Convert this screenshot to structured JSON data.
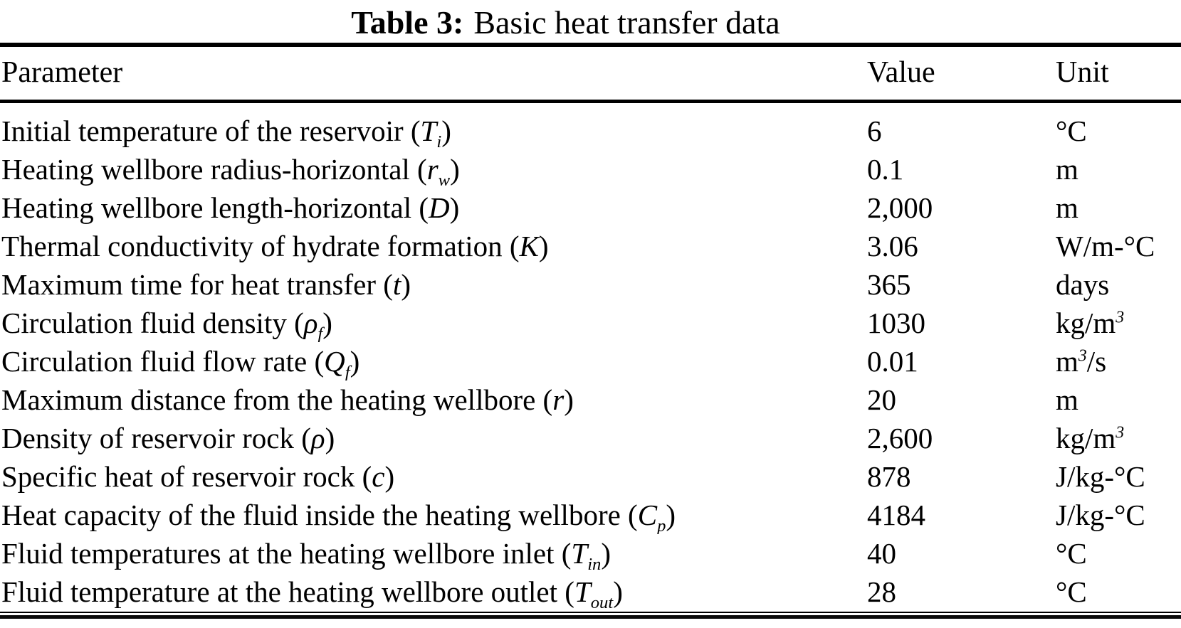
{
  "caption": {
    "label": "Table 3:",
    "text": "Basic heat transfer data"
  },
  "table": {
    "columns": [
      "Parameter",
      "Value",
      "Unit"
    ],
    "rows": [
      {
        "param": "Initial temperature of the reservoir (*T*_{i})",
        "value": "6",
        "unit": "°C"
      },
      {
        "param": "Heating wellbore radius-horizontal (*r*_{w})",
        "value": "0.1",
        "unit": "m"
      },
      {
        "param": "Heating wellbore length-horizontal (*D*)",
        "value": "2,000",
        "unit": "m"
      },
      {
        "param": "Thermal conductivity of hydrate formation (*K*)",
        "value": "3.06",
        "unit": "W/m-°C"
      },
      {
        "param": "Maximum time for heat transfer (*t*)",
        "value": "365",
        "unit": "days"
      },
      {
        "param": "Circulation fluid density (*ρ*_{f})",
        "value": "1030",
        "unit": "kg/m^{3}"
      },
      {
        "param": "Circulation fluid flow rate (*Q*_{f})",
        "value": "0.01",
        "unit": "m^{3}/s"
      },
      {
        "param": "Maximum distance from the heating wellbore (*r*)",
        "value": "20",
        "unit": "m"
      },
      {
        "param": "Density of reservoir rock (*ρ*)",
        "value": "2,600",
        "unit": "kg/m^{3}"
      },
      {
        "param": "Specific heat of reservoir rock (*c*)",
        "value": "878",
        "unit": "J/kg-°C"
      },
      {
        "param": "Heat capacity of the fluid inside the heating wellbore (*C*_{p})",
        "value": "4184",
        "unit": "J/kg-°C"
      },
      {
        "param": "Fluid temperatures at the heating wellbore inlet (*T*_{in})",
        "value": "40",
        "unit": "°C"
      },
      {
        "param": "Fluid temperature at the heating wellbore outlet (*T*_{out})",
        "value": "28",
        "unit": "°C"
      }
    ]
  },
  "colors": {
    "text": "#000000",
    "background": "#ffffff",
    "rule": "#000000"
  }
}
